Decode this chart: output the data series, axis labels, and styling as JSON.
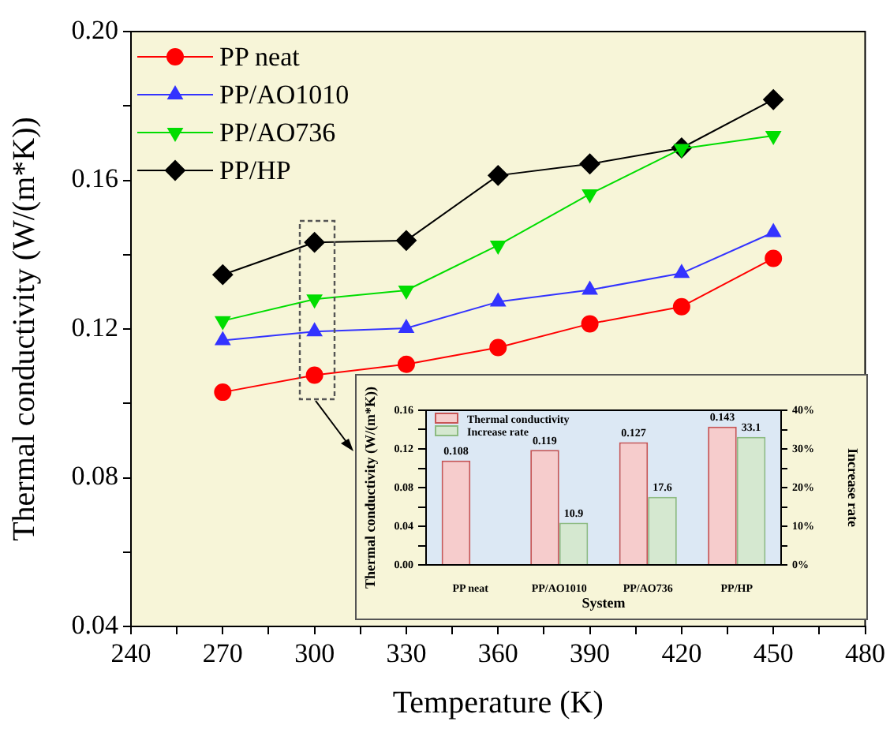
{
  "chart_data": [
    {
      "type": "line",
      "xlabel": "Temperature (K)",
      "ylabel": "Thermal conductivity (W/(m*K))",
      "x": [
        270,
        300,
        330,
        360,
        390,
        420,
        450
      ],
      "series": [
        {
          "name": "PP neat",
          "color": "#ff0000",
          "marker": "circle",
          "values": [
            0.103,
            0.1076,
            0.1105,
            0.115,
            0.1214,
            0.126,
            0.139
          ]
        },
        {
          "name": "PP/AO1010",
          "color": "#3333ff",
          "marker": "triangle",
          "values": [
            0.1169,
            0.1193,
            0.1202,
            0.1273,
            0.1305,
            0.135,
            0.146
          ]
        },
        {
          "name": "PP/AO736",
          "color": "#00dd00",
          "marker": "triangle-down",
          "values": [
            0.1222,
            0.128,
            0.1304,
            0.1425,
            0.1563,
            0.1685,
            0.172
          ]
        },
        {
          "name": "PP/HP",
          "color": "#000000",
          "marker": "diamond",
          "values": [
            0.1346,
            0.1433,
            0.1438,
            0.1613,
            0.1644,
            0.1687,
            0.1817
          ]
        }
      ],
      "xlim": [
        240,
        480
      ],
      "xticks": [
        240,
        {
          "value": 255,
          "label": null
        },
        270,
        {
          "value": 285,
          "label": null
        },
        300,
        {
          "value": 315,
          "label": null
        },
        330,
        {
          "value": 345,
          "label": null
        },
        360,
        {
          "value": 375,
          "label": null
        },
        390,
        {
          "value": 405,
          "label": null
        },
        420,
        {
          "value": 435,
          "label": null
        },
        450,
        {
          "value": 465,
          "label": null
        },
        480
      ],
      "ylim": [
        0.04,
        0.2
      ],
      "yticks": [
        0.04,
        {
          "value": 0.06,
          "label": null
        },
        0.08,
        {
          "value": 0.1,
          "label": null
        },
        0.12,
        {
          "value": 0.14,
          "label": null
        },
        0.16,
        {
          "value": 0.18,
          "label": null
        },
        {
          "value": 0.2,
          "label": "0.20"
        }
      ],
      "legend": "top left",
      "line_style": "solid"
    },
    {
      "type": "bar",
      "xlabel": "System",
      "ylabel": "Thermal conductivity (W/(m*K))",
      "y2label": "Increase rate",
      "categories": [
        "PP neat",
        "PP/AO1010",
        "PP/AO736",
        "PP/HP"
      ],
      "series": [
        {
          "name": "Thermal conductivity",
          "color": "#f6cccc",
          "values": [
            0.108,
            0.119,
            0.127,
            0.143
          ]
        },
        {
          "name": "Increase rate",
          "color": "#d5e8d0",
          "axis": "y2",
          "values": [
            null,
            10.9,
            17.6,
            33.1
          ]
        }
      ],
      "ylim": [
        0,
        0.16
      ],
      "yticks": [
        {
          "value": 0,
          "label": "0.00"
        },
        {
          "value": 0.02,
          "label": null
        },
        0.04,
        {
          "value": 0.06,
          "label": null
        },
        0.08,
        {
          "value": 0.1,
          "label": null
        },
        0.12,
        {
          "value": 0.14,
          "label": null
        },
        0.16
      ],
      "y2lim": [
        0,
        40
      ],
      "y2ticks": [
        {
          "value": 0,
          "label": "0%"
        },
        {
          "value": 5,
          "label": null
        },
        {
          "value": 10,
          "label": "10%"
        },
        {
          "value": 15,
          "label": null
        },
        {
          "value": 20,
          "label": "20%"
        },
        {
          "value": 25,
          "label": null
        },
        {
          "value": 30,
          "label": "30%"
        },
        {
          "value": 35,
          "label": null
        },
        {
          "value": 40,
          "label": "40%"
        }
      ],
      "legend": "top left",
      "data_labels": true
    }
  ]
}
